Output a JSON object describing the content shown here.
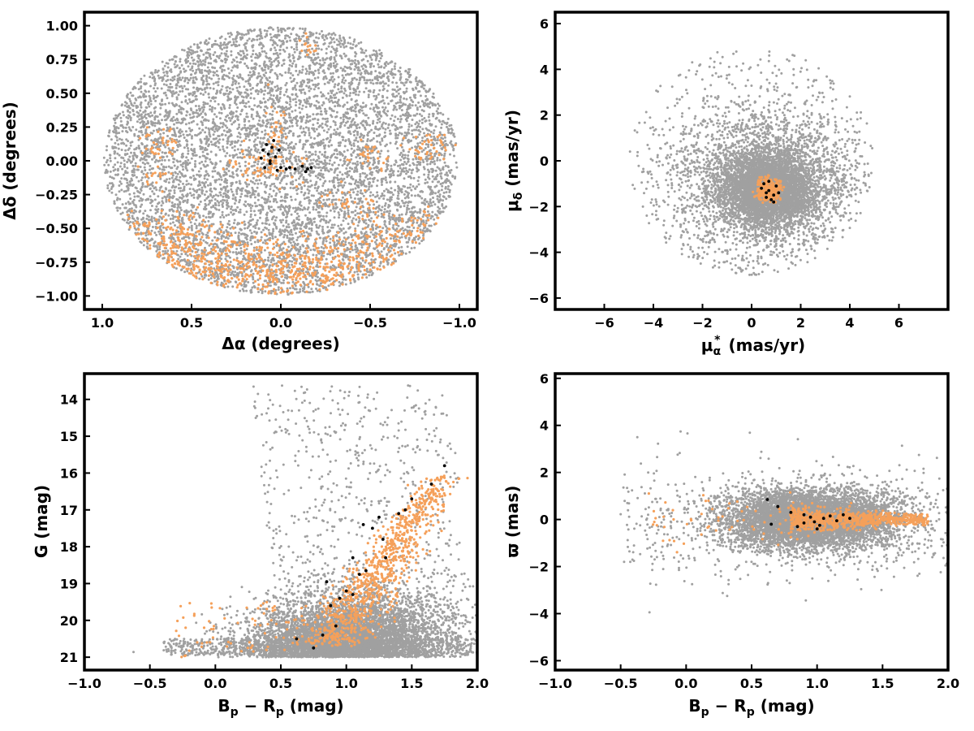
{
  "colors": {
    "field": "#a0a0a0",
    "candidate": "#f5a05a",
    "member": "#000000"
  },
  "chart_data": [
    {
      "id": "sky",
      "type": "scatter",
      "title": "",
      "xlabel": "Δα (degrees)",
      "ylabel": "Δδ (degrees)",
      "xlim": [
        1.1,
        -1.1
      ],
      "ylim": [
        -1.1,
        1.1
      ],
      "x_inverted": true,
      "xticks": [
        1.0,
        0.5,
        0.0,
        -0.5,
        -1.0
      ],
      "xtick_labels": [
        "1.0",
        "0.5",
        "0.0",
        "−0.5",
        "−1.0"
      ],
      "yticks": [
        1.0,
        0.75,
        0.5,
        0.25,
        0.0,
        -0.25,
        -0.5,
        -0.75,
        -1.0
      ],
      "ytick_labels": [
        "1.00",
        "0.75",
        "0.50",
        "0.25",
        "0.00",
        "−0.25",
        "−0.50",
        "−0.75",
        "−1.00"
      ],
      "grid": false,
      "series": [
        {
          "role": "field",
          "color": "#a0a0a0",
          "distribution": "uniform disk radius 0.99 deg",
          "count_approx": 9000
        },
        {
          "role": "candidate",
          "color": "#f5a05a",
          "distribution": "clumps, concentrated toward south (Δδ < -0.4)"
        },
        {
          "role": "member",
          "color": "#000000",
          "points": [
            [
              0.08,
              0.12
            ],
            [
              0.05,
              0.1
            ],
            [
              0.1,
              0.08
            ],
            [
              0.07,
              0.05
            ],
            [
              0.03,
              0.03
            ],
            [
              0.06,
              -0.02
            ],
            [
              0.09,
              -0.05
            ],
            [
              0.02,
              -0.07
            ],
            [
              0.0,
              -0.05
            ],
            [
              -0.03,
              -0.06
            ],
            [
              -0.05,
              -0.05
            ],
            [
              -0.08,
              -0.06
            ],
            [
              -0.12,
              -0.04
            ],
            [
              -0.15,
              -0.06
            ],
            [
              -0.17,
              -0.05
            ],
            [
              -0.14,
              -0.08
            ],
            [
              0.04,
              0.15
            ],
            [
              0.06,
              0.0
            ],
            [
              0.11,
              0.02
            ],
            [
              0.01,
              0.08
            ]
          ]
        }
      ]
    },
    {
      "id": "pm",
      "type": "scatter",
      "title": "",
      "xlabel": "μα* (mas/yr)",
      "ylabel": "μδ (mas/yr)",
      "xlim": [
        -8,
        8
      ],
      "ylim": [
        -6.5,
        6.5
      ],
      "xticks": [
        -6,
        -4,
        -2,
        0,
        2,
        4,
        6
      ],
      "xtick_labels": [
        "−6",
        "−4",
        "−2",
        "0",
        "2",
        "4",
        "6"
      ],
      "yticks": [
        6,
        4,
        2,
        0,
        -2,
        -4,
        -6
      ],
      "ytick_labels": [
        "6",
        "4",
        "2",
        "0",
        "−2",
        "−4",
        "−6"
      ],
      "grid": false,
      "series": [
        {
          "role": "field",
          "color": "#a0a0a0",
          "distribution": "concentrated near (0.6, -1.2), cut at radius 5 mas/yr from (0, 0)",
          "count_approx": 9000
        },
        {
          "role": "candidate",
          "color": "#f5a05a",
          "distribution": "tight clump radius ~0.6 around (0.7, -1.2)"
        },
        {
          "role": "member",
          "color": "#000000",
          "points": [
            [
              0.5,
              -1.0
            ],
            [
              0.7,
              -1.3
            ],
            [
              0.9,
              -1.5
            ],
            [
              0.6,
              -1.6
            ],
            [
              1.0,
              -1.1
            ],
            [
              0.8,
              -1.7
            ],
            [
              0.4,
              -1.2
            ],
            [
              1.1,
              -1.4
            ],
            [
              0.7,
              -0.9
            ],
            [
              0.9,
              -1.8
            ],
            [
              0.6,
              -1.4
            ]
          ]
        }
      ]
    },
    {
      "id": "cmd",
      "type": "scatter",
      "title": "",
      "xlabel": "Bp − Rp (mag)",
      "ylabel": "G (mag)",
      "xlim": [
        -1.0,
        2.0
      ],
      "ylim": [
        21.35,
        13.3
      ],
      "y_inverted": true,
      "xticks": [
        -1.0,
        -0.5,
        0.0,
        0.5,
        1.0,
        1.5,
        2.0
      ],
      "xtick_labels": [
        "−1.0",
        "−0.5",
        "0.0",
        "0.5",
        "1.0",
        "1.5",
        "2.0"
      ],
      "yticks": [
        21,
        20,
        19,
        18,
        17,
        16,
        15,
        14
      ],
      "ytick_labels": [
        "21",
        "20",
        "19",
        "18",
        "17",
        "16",
        "15",
        "14"
      ],
      "grid": false,
      "series": [
        {
          "role": "field",
          "color": "#a0a0a0",
          "distribution": "faint field sequence, dense at G~20.5-21, B-R 0.5-1.2",
          "count_approx": 8000
        },
        {
          "role": "candidate",
          "color": "#f5a05a",
          "distribution": "main sequence from (0.9, 19.5) to (1.75, 16.0)"
        },
        {
          "role": "member",
          "color": "#000000",
          "points": [
            [
              0.75,
              20.75
            ],
            [
              0.62,
              20.5
            ],
            [
              0.82,
              20.4
            ],
            [
              0.92,
              20.15
            ],
            [
              0.88,
              19.6
            ],
            [
              0.95,
              19.4
            ],
            [
              1.0,
              19.2
            ],
            [
              1.05,
              19.3
            ],
            [
              0.85,
              18.95
            ],
            [
              1.1,
              18.75
            ],
            [
              1.15,
              18.65
            ],
            [
              1.05,
              18.3
            ],
            [
              1.3,
              18.3
            ],
            [
              1.28,
              17.8
            ],
            [
              1.2,
              17.5
            ],
            [
              1.13,
              17.4
            ],
            [
              1.25,
              17.2
            ],
            [
              1.4,
              17.1
            ],
            [
              1.45,
              17.0
            ],
            [
              1.5,
              16.7
            ],
            [
              1.65,
              16.3
            ],
            [
              1.75,
              15.8
            ]
          ]
        }
      ]
    },
    {
      "id": "plx",
      "type": "scatter",
      "title": "",
      "xlabel": "Bp − Rp (mag)",
      "ylabel": "ϖ (mas)",
      "xlim": [
        -1.0,
        2.0
      ],
      "ylim": [
        -6.4,
        6.2
      ],
      "xticks": [
        -1.0,
        -0.5,
        0.0,
        0.5,
        1.0,
        1.5,
        2.0
      ],
      "xtick_labels": [
        "−1.0",
        "−0.5",
        "0.0",
        "0.5",
        "1.0",
        "1.5",
        "2.0"
      ],
      "yticks": [
        6,
        4,
        2,
        0,
        -2,
        -4,
        -6
      ],
      "ytick_labels": [
        "6",
        "4",
        "2",
        "0",
        "−2",
        "−4",
        "−6"
      ],
      "grid": false,
      "series": [
        {
          "role": "field",
          "color": "#a0a0a0",
          "distribution": "centered on parallax 0, spread ~1 mas, B-R 0.5-1.5",
          "count_approx": 8000
        },
        {
          "role": "candidate",
          "color": "#f5a05a",
          "distribution": "narrow band near parallax 0, B-R 0.8-1.8"
        },
        {
          "role": "member",
          "color": "#000000",
          "points": [
            [
              0.62,
              0.85
            ],
            [
              0.7,
              0.55
            ],
            [
              0.9,
              0.2
            ],
            [
              0.95,
              0.1
            ],
            [
              0.98,
              -0.1
            ],
            [
              1.02,
              -0.25
            ],
            [
              1.05,
              0.05
            ],
            [
              1.1,
              0.15
            ],
            [
              1.15,
              -0.05
            ],
            [
              1.2,
              0.2
            ],
            [
              1.25,
              0.05
            ],
            [
              0.85,
              -0.3
            ],
            [
              0.9,
              -0.15
            ],
            [
              1.0,
              -0.4
            ],
            [
              0.65,
              -0.2
            ],
            [
              0.8,
              0.3
            ]
          ]
        }
      ]
    }
  ]
}
